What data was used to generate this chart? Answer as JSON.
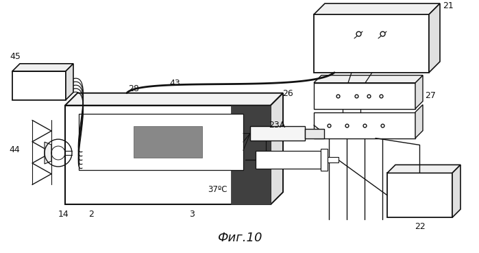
{
  "bg": "#ffffff",
  "lc": "#111111",
  "fig_caption": "Фиг.10",
  "temp_label": "37ºC"
}
